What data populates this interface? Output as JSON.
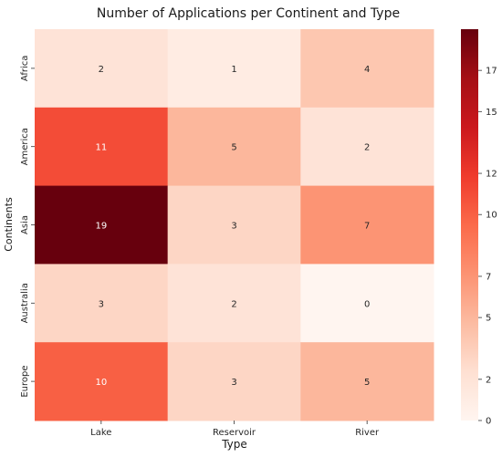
{
  "chart_data": {
    "type": "heatmap",
    "title": "Number of Applications per Continent and Type",
    "xlabel": "Type",
    "ylabel": "Continents",
    "x_categories": [
      "Lake",
      "Reservoir",
      "River"
    ],
    "y_categories": [
      "Africa",
      "America",
      "Asia",
      "Australia",
      "Europe"
    ],
    "values": [
      [
        2,
        1,
        4
      ],
      [
        11,
        5,
        2
      ],
      [
        19,
        3,
        7
      ],
      [
        3,
        2,
        0
      ],
      [
        10,
        3,
        5
      ]
    ],
    "colormap": "Reds",
    "colorbar": {
      "range": [
        0,
        19
      ],
      "ticks": [
        0,
        2,
        5,
        7,
        10,
        12,
        15,
        17
      ]
    }
  }
}
